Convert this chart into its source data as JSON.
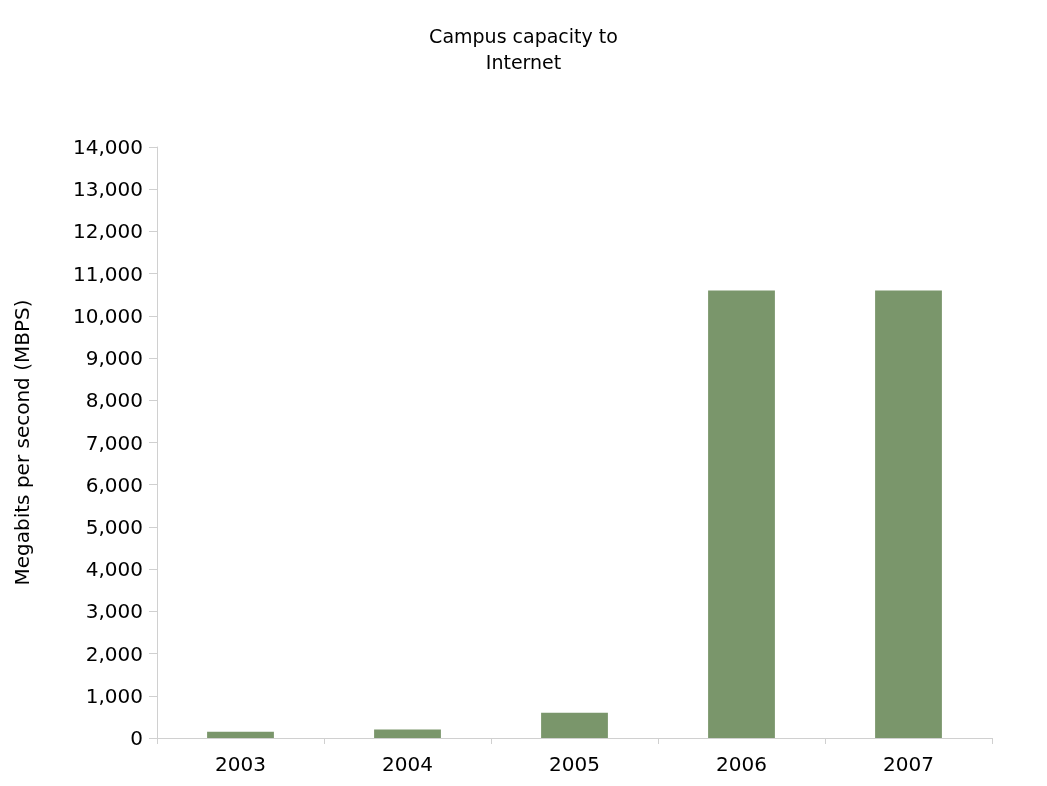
{
  "chart_data": {
    "type": "bar",
    "title": "Campus capacity to\nInternet",
    "ylabel": "Megabits per second (MBPS)",
    "categories": [
      "2003",
      "2004",
      "2005",
      "2006",
      "2007"
    ],
    "values": [
      150,
      200,
      600,
      10600,
      10600
    ],
    "color": "#7a966b",
    "ylim": [
      0,
      14000
    ],
    "yticks": [
      0,
      {
        "value": 1000,
        "label": "1,000"
      },
      {
        "value": 2000,
        "label": "2,000"
      },
      {
        "value": 3000,
        "label": "3,000"
      },
      {
        "value": 4000,
        "label": "4,000"
      },
      {
        "value": 5000,
        "label": "5,000"
      },
      {
        "value": 6000,
        "label": "6,000"
      },
      {
        "value": 7000,
        "label": "7,000"
      },
      {
        "value": 8000,
        "label": "8,000"
      },
      {
        "value": 9000,
        "label": "9,000"
      },
      {
        "value": 10000,
        "label": "10,000"
      },
      {
        "value": 11000,
        "label": "11,000"
      },
      {
        "value": 12000,
        "label": "12,000"
      },
      {
        "value": 13000,
        "label": "13,000"
      },
      {
        "value": 14000,
        "label": "14,000"
      }
    ],
    "grid": false
  }
}
